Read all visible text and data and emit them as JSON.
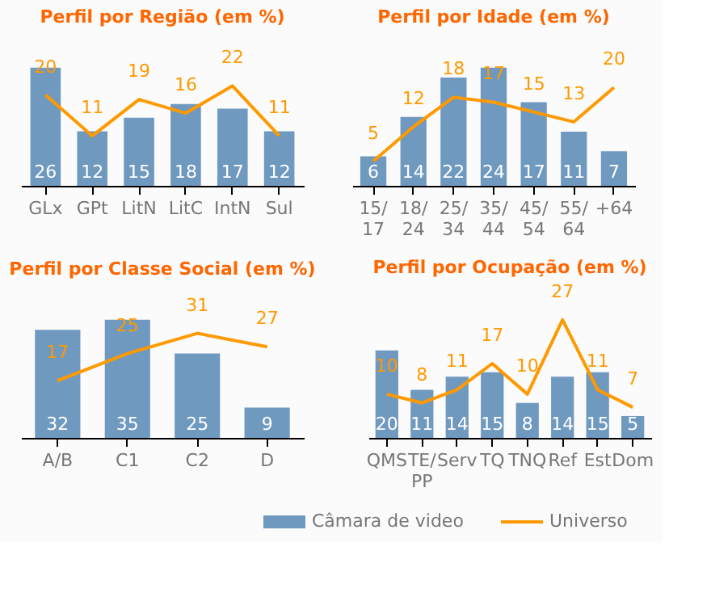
{
  "chart_data": [
    {
      "type": "bar",
      "title": "Perfil por Região (em %)",
      "categories": [
        "GLx",
        "GPt",
        "LitN",
        "LitC",
        "IntN",
        "Sul"
      ],
      "data_labels": true,
      "series": [
        {
          "color": "#7099bf",
          "values": [
            26,
            12,
            15,
            18,
            17,
            12
          ]
        },
        {
          "type": "line",
          "color": "#ff9900",
          "values": [
            20,
            11,
            19,
            16,
            22,
            11
          ]
        }
      ]
    },
    {
      "type": "bar",
      "title": "Perfil por Idade (em %)",
      "categories": [
        "15/17",
        "18/24",
        "25/34",
        "35/44",
        "45/54",
        "55/64",
        "+64"
      ],
      "data_labels": true,
      "series": [
        {
          "color": "#7099bf",
          "values": [
            6,
            14,
            22,
            24,
            17,
            11,
            7
          ]
        },
        {
          "type": "line",
          "color": "#ff9900",
          "values": [
            5,
            12,
            18,
            17,
            15,
            13,
            20
          ]
        }
      ]
    },
    {
      "type": "bar",
      "title": "Perfil por Classe Social (em %)",
      "categories": [
        "A/B",
        "C1",
        "C2",
        "D"
      ],
      "data_labels": true,
      "series": [
        {
          "color": "#7099bf",
          "values": [
            32,
            35,
            25,
            9
          ]
        },
        {
          "type": "line",
          "color": "#ff9900",
          "values": [
            17,
            25,
            31,
            27
          ]
        }
      ]
    },
    {
      "type": "bar",
      "title": "Perfil por Ocupação (em %)",
      "categories": [
        "QMS",
        "TE/PP",
        "Serv",
        "TQ",
        "TNQ",
        "Ref",
        "Est",
        "Dom"
      ],
      "data_labels": true,
      "legend": "bottom",
      "series": [
        {
          "name": "Câmara de video",
          "color": "#7099bf",
          "values": [
            20,
            11,
            14,
            15,
            8,
            14,
            15,
            5
          ]
        },
        {
          "name": "Universo",
          "type": "line",
          "color": "#ff9900",
          "values": [
            10,
            8,
            11,
            17,
            10,
            27,
            11,
            7
          ]
        }
      ]
    }
  ]
}
